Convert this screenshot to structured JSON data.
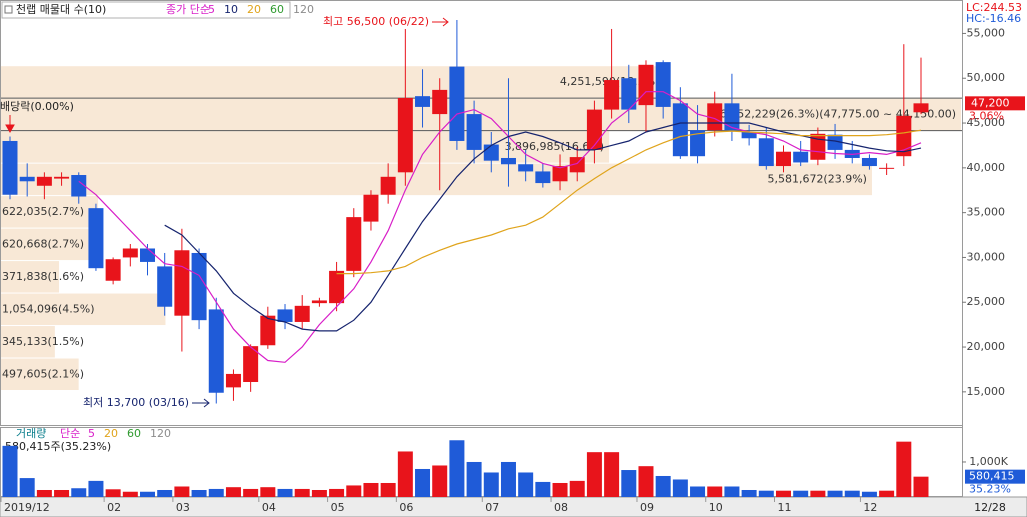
{
  "chart_data": {
    "type": "candlestick",
    "categories": [
      "2019/12",
      null,
      null,
      null,
      null,
      null,
      "02",
      null,
      null,
      null,
      "03",
      null,
      null,
      null,
      null,
      "04",
      null,
      null,
      null,
      "05",
      null,
      null,
      null,
      "06",
      null,
      null,
      null,
      null,
      "07",
      null,
      null,
      null,
      "08",
      null,
      null,
      null,
      null,
      "09",
      null,
      null,
      null,
      "10",
      null,
      null,
      null,
      "11",
      null,
      null,
      null,
      null,
      "12",
      null,
      null,
      null
    ],
    "open": [
      43000,
      39000,
      38000,
      38800,
      39200,
      35500,
      27400,
      30000,
      31000,
      29000,
      23500,
      30500,
      24200,
      15500,
      16100,
      20200,
      24200,
      22800,
      24900,
      24900,
      28500,
      34000,
      37000,
      39500,
      48000,
      46000,
      51300,
      46000,
      42600,
      41100,
      40400,
      39600,
      38500,
      39500,
      42000,
      46500,
      50000,
      47000,
      51800,
      47200,
      44200,
      44200,
      47200,
      44000,
      43300,
      40200,
      41800,
      40900,
      43700,
      42000,
      41100,
      40000,
      41300,
      46200
    ],
    "high": [
      43500,
      40500,
      39500,
      39500,
      39500,
      36000,
      30000,
      31500,
      31500,
      30500,
      33200,
      31000,
      25500,
      17500,
      20300,
      24500,
      24800,
      25800,
      25500,
      29500,
      35500,
      37500,
      40500,
      55500,
      51000,
      50000,
      56500,
      47500,
      44000,
      50000,
      42000,
      40500,
      41500,
      42300,
      47500,
      55500,
      51500,
      52000,
      52000,
      49000,
      47000,
      48500,
      50500,
      44800,
      44500,
      42500,
      43000,
      44500,
      44900,
      43000,
      41500,
      40500,
      53800,
      52300
    ],
    "low": [
      36500,
      36800,
      36500,
      38000,
      36000,
      28500,
      27000,
      29000,
      28000,
      23500,
      19500,
      22000,
      13700,
      14000,
      15000,
      19800,
      22000,
      22000,
      24500,
      24000,
      27800,
      33000,
      36000,
      38000,
      44500,
      37500,
      42000,
      40500,
      39500,
      37900,
      38500,
      37800,
      37500,
      38500,
      40500,
      45500,
      45000,
      44000,
      45500,
      41000,
      40500,
      43500,
      43000,
      42500,
      39800,
      39500,
      40200,
      40300,
      41000,
      40500,
      39800,
      39200,
      40200,
      46000
    ],
    "close": [
      37000,
      38500,
      39000,
      39000,
      36800,
      28800,
      29800,
      31000,
      29500,
      24500,
      30800,
      23000,
      14900,
      17000,
      20100,
      23500,
      22800,
      24600,
      25200,
      28500,
      34500,
      37000,
      39000,
      47800,
      46800,
      48700,
      43000,
      42000,
      40800,
      40400,
      39600,
      38300,
      40200,
      41200,
      46500,
      49800,
      46500,
      51500,
      46800,
      41300,
      41300,
      47200,
      44200,
      43300,
      40200,
      41800,
      40600,
      43800,
      42000,
      41100,
      40200,
      40000,
      45800,
      47200
    ],
    "up_color": "#e8141b",
    "down_color": "#1f5bd8",
    "ylim": [
      11300,
      56500
    ],
    "yticks": [
      {
        "value": 15000,
        "label": "15,000"
      },
      {
        "value": 20000,
        "label": "20,000"
      },
      {
        "value": 25000,
        "label": "25,000"
      },
      {
        "value": 30000,
        "label": "30,000"
      },
      {
        "value": 35000,
        "label": "35,000"
      },
      {
        "value": 40000,
        "label": "40,000"
      },
      {
        "value": 45000,
        "label": "45,000"
      },
      {
        "value": 50000,
        "label": "50,000"
      },
      {
        "value": 55000,
        "label": "55,000"
      }
    ],
    "grid": false,
    "current": {
      "value": 47200,
      "label": "47,200",
      "change": "3.06%"
    },
    "lc": "LC:244.53",
    "hc": "HC:-16.46",
    "last_date": "12/28",
    "annotations": {
      "high": "최고 56,500 (06/22)",
      "low": "최저 13,700 (03/16)",
      "ex_dividend": "배당락(0.00%)"
    },
    "moving_averages": {
      "label": "종가 단순",
      "series": [
        {
          "name": "5",
          "color": "#d81ec8",
          "values": [
            null,
            null,
            null,
            null,
            38500,
            37000,
            35000,
            33000,
            31000,
            29300,
            29000,
            28000,
            25000,
            22000,
            20000,
            18500,
            18300,
            20000,
            22500,
            24500,
            26500,
            29500,
            33000,
            37500,
            41500,
            44000,
            46000,
            46500,
            45500,
            43500,
            41500,
            40500,
            40000,
            40500,
            42500,
            45000,
            46500,
            48500,
            48500,
            47500,
            46000,
            45500,
            44500,
            44000,
            43700,
            43000,
            42000,
            41800,
            41600,
            41500,
            41700,
            41500,
            42000,
            42800
          ]
        },
        {
          "name": "10",
          "color": "#16246e",
          "values": [
            null,
            null,
            null,
            null,
            null,
            null,
            null,
            null,
            null,
            33600,
            32500,
            30500,
            28500,
            26000,
            24500,
            23200,
            22800,
            22000,
            21800,
            21800,
            23000,
            25000,
            28000,
            31000,
            34000,
            36500,
            39000,
            41000,
            42500,
            43500,
            44000,
            43500,
            42800,
            42000,
            42000,
            42500,
            43000,
            44000,
            44500,
            45000,
            45000,
            45000,
            45000,
            45000,
            44500,
            44000,
            43600,
            43200,
            43000,
            42600,
            42200,
            41900,
            41800,
            42200
          ]
        },
        {
          "name": "20",
          "color": "#e0a41c",
          "values": [
            null,
            null,
            null,
            null,
            null,
            null,
            null,
            null,
            null,
            null,
            null,
            null,
            null,
            null,
            null,
            null,
            null,
            null,
            null,
            28200,
            28200,
            28300,
            28500,
            29000,
            30000,
            30800,
            31500,
            32000,
            32500,
            33200,
            33600,
            34500,
            36000,
            37500,
            38800,
            40000,
            41000,
            42000,
            42800,
            43500,
            43800,
            44000,
            44100,
            44000,
            43900,
            43800,
            43600,
            43600,
            43600,
            43600,
            43600,
            43700,
            43900,
            44200
          ]
        },
        {
          "name": "60",
          "color": "#2f9a2f"
        },
        {
          "name": "120",
          "color": "#8c8c8c"
        }
      ]
    },
    "volume_profile": {
      "title": "천랩 매물대 수(10)",
      "color": "#f8e8d6",
      "bands": [
        {
          "low": 15150,
          "high": 18775,
          "value": 497605,
          "label": "497,605(2.1%)"
        },
        {
          "low": 18775,
          "high": 22400,
          "value": 345133,
          "label": "345,133(1.5%)"
        },
        {
          "low": 22400,
          "high": 26025,
          "value": 1054096,
          "label": "1,054,096(4.5%)"
        },
        {
          "low": 26025,
          "high": 29650,
          "value": 371838,
          "label": "371,838(1.6%)"
        },
        {
          "low": 29650,
          "high": 33275,
          "value": 620668,
          "label": "620,668(2.7%)"
        },
        {
          "low": 33275,
          "high": 36900,
          "value": 622035,
          "label": "622,035(2.7%)"
        },
        {
          "low": 36900,
          "high": 40525,
          "value": 5581672,
          "label": "5,581,672(23.9%)"
        },
        {
          "low": 40525,
          "high": 44150,
          "value": 3896985,
          "label": "3,896,985(16.6%)"
        },
        {
          "low": 44150,
          "high": 47775,
          "value": 6152229,
          "label": "6,152,229(26.3%)(47,775.00 ~ 44,150.00)"
        },
        {
          "low": 47775,
          "high": 51400,
          "value": 4251590,
          "label": "4,251,590(18.2%)"
        }
      ]
    },
    "volume": {
      "title": "거래량",
      "ma_label": "단순",
      "ma_series": [
        {
          "name": "5",
          "color": "#d81ec8"
        },
        {
          "name": "20",
          "color": "#e0a41c"
        },
        {
          "name": "60",
          "color": "#2f9a2f"
        },
        {
          "name": "120",
          "color": "#8c8c8c"
        }
      ],
      "last_label": "580,415주(35.23%)",
      "values": [
        1460000,
        540000,
        200000,
        200000,
        250000,
        460000,
        220000,
        150000,
        150000,
        200000,
        300000,
        200000,
        230000,
        280000,
        230000,
        280000,
        230000,
        230000,
        200000,
        230000,
        330000,
        400000,
        400000,
        1300000,
        800000,
        900000,
        1620000,
        1000000,
        700000,
        1000000,
        700000,
        430000,
        400000,
        460000,
        1280000,
        1280000,
        770000,
        880000,
        600000,
        500000,
        300000,
        300000,
        300000,
        200000,
        180000,
        180000,
        180000,
        180000,
        180000,
        180000,
        150000,
        180000,
        1580000,
        580415
      ],
      "ylim": [
        0,
        1970000
      ],
      "yticks": [
        {
          "value": 1000000,
          "label": "1,000K"
        }
      ],
      "current": {
        "value": 580415,
        "label": "580,415",
        "change": "35.23%"
      }
    }
  }
}
